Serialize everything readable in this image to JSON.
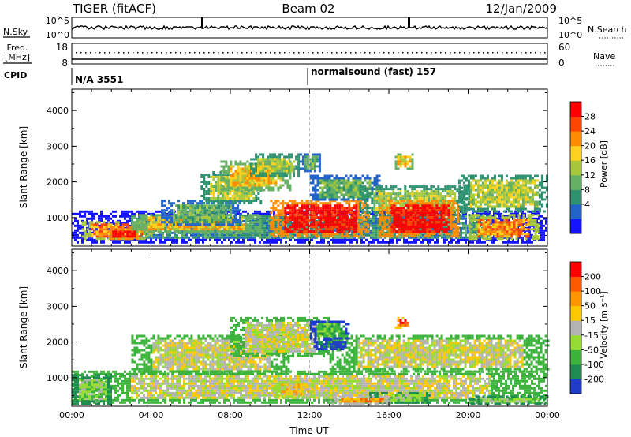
{
  "header": {
    "radar": "TIGER (fitACF)",
    "beam": "Beam 02",
    "date": "12/Jan/2009"
  },
  "summary_panels": {
    "nsky": {
      "label": "N.Sky",
      "tick_top": "10^5",
      "tick_bottom": "10^0"
    },
    "nsearch": {
      "label": "N.Search",
      "tick_top": "10^5",
      "tick_bottom": "10^0"
    },
    "freq": {
      "label_line1": "Freq.",
      "label_line2": "[MHz]",
      "tick_top": "18",
      "tick_bottom": "8"
    },
    "nave": {
      "label": "Nave",
      "tick_top": "60",
      "tick_bottom": "0"
    },
    "cpid": {
      "label": "CPID",
      "mode1": "N/A 3551",
      "mode2": "normalsound (fast) 157"
    }
  },
  "chart_data": [
    {
      "type": "heatmap",
      "name": "power",
      "ylabel": "Slant Range [km]",
      "ylim": [
        200,
        4600
      ],
      "yticks": [
        1000,
        2000,
        3000,
        4000
      ],
      "xlim": [
        0,
        24
      ],
      "colorbar": {
        "label": "Power [dB]",
        "ticks": [
          "28",
          "24",
          "20",
          "16",
          "12",
          "8",
          "4"
        ],
        "colors": [
          "#1414ff",
          "#2364c8",
          "#2e9170",
          "#66b066",
          "#a8c83c",
          "#ffd21e",
          "#ff8c00",
          "#ff4600",
          "#ff0000"
        ]
      },
      "bands": [
        {
          "t0": 0.0,
          "t1": 24.0,
          "r0": 300,
          "r1": 1200,
          "level": 2
        },
        {
          "t0": 0.5,
          "t1": 4.0,
          "r0": 400,
          "r1": 900,
          "level": 6
        },
        {
          "t0": 1.8,
          "t1": 3.3,
          "r0": 400,
          "r1": 700,
          "level": 8
        },
        {
          "t0": 3.0,
          "t1": 9.5,
          "r0": 600,
          "r1": 1100,
          "level": 5
        },
        {
          "t0": 4.5,
          "t1": 8.5,
          "r0": 800,
          "r1": 1500,
          "level": 3
        },
        {
          "t0": 6.5,
          "t1": 9.5,
          "r0": 1400,
          "r1": 2300,
          "level": 4
        },
        {
          "t0": 7.5,
          "t1": 11.0,
          "r0": 1800,
          "r1": 2600,
          "level": 5
        },
        {
          "t0": 9.0,
          "t1": 11.5,
          "r0": 2200,
          "r1": 2800,
          "level": 4
        },
        {
          "t0": 10.0,
          "t1": 15.0,
          "r0": 500,
          "r1": 1500,
          "level": 8
        },
        {
          "t0": 12.0,
          "t1": 15.5,
          "r0": 1500,
          "r1": 2200,
          "level": 3
        },
        {
          "t0": 14.5,
          "t1": 20.0,
          "r0": 1100,
          "r1": 1900,
          "level": 4
        },
        {
          "t0": 15.5,
          "t1": 19.5,
          "r0": 500,
          "r1": 1500,
          "level": 8
        },
        {
          "t0": 19.5,
          "t1": 24.0,
          "r0": 1200,
          "r1": 2200,
          "level": 4
        },
        {
          "t0": 20.0,
          "t1": 23.5,
          "r0": 400,
          "r1": 1100,
          "level": 6
        },
        {
          "t0": 16.3,
          "t1": 17.2,
          "r0": 2400,
          "r1": 2800,
          "level": 5
        },
        {
          "t0": 11.5,
          "t1": 12.5,
          "r0": 2300,
          "r1": 2800,
          "level": 3
        }
      ]
    },
    {
      "type": "heatmap",
      "name": "velocity",
      "ylabel": "Slant Range [km]",
      "xlabel": "Time UT",
      "ylim": [
        200,
        4600
      ],
      "yticks": [
        1000,
        2000,
        3000,
        4000
      ],
      "xlim": [
        0,
        24
      ],
      "xticks": [
        "00:00",
        "04:00",
        "08:00",
        "12:00",
        "16:00",
        "20:00",
        "00:00"
      ],
      "colorbar": {
        "label": "Velocity [m s⁻¹]",
        "ticks": [
          "200",
          "100",
          "50",
          "15",
          "-15",
          "-50",
          "-100",
          "-200"
        ],
        "colors": [
          "#1e3cc8",
          "#1e8c50",
          "#3cb43c",
          "#96dc32",
          "#b4b4b4",
          "#ffc800",
          "#ff9600",
          "#ff5a00",
          "#ff0000"
        ]
      },
      "bands": [
        {
          "t0": 0.0,
          "t1": 24.0,
          "r0": 300,
          "r1": 1200,
          "level": 4
        },
        {
          "t0": 3.0,
          "t1": 11.0,
          "r0": 1100,
          "r1": 2200,
          "level": 4
        },
        {
          "t0": 8.0,
          "t1": 13.0,
          "r0": 1600,
          "r1": 2700,
          "level": 4
        },
        {
          "t0": 13.0,
          "t1": 24.0,
          "r0": 1200,
          "r1": 2200,
          "level": 4
        },
        {
          "t0": 10.2,
          "t1": 12.2,
          "r0": 500,
          "r1": 900,
          "level": 5
        },
        {
          "t0": 12.0,
          "t1": 14.0,
          "r0": 2100,
          "r1": 2600,
          "level": 2
        },
        {
          "t0": 12.2,
          "t1": 13.8,
          "r0": 1800,
          "r1": 2100,
          "level": 0
        },
        {
          "t0": 15.0,
          "t1": 18.0,
          "r0": 300,
          "r1": 600,
          "level": 3
        },
        {
          "t0": 16.3,
          "t1": 17.0,
          "r0": 2400,
          "r1": 2700,
          "level": 7
        },
        {
          "t0": 0.0,
          "t1": 2.0,
          "r0": 300,
          "r1": 1100,
          "level": 3
        },
        {
          "t0": 13.0,
          "t1": 16.0,
          "r0": 300,
          "r1": 500,
          "level": 6
        },
        {
          "t0": 20.0,
          "t1": 24.0,
          "r0": 300,
          "r1": 500,
          "level": 3
        }
      ]
    }
  ]
}
